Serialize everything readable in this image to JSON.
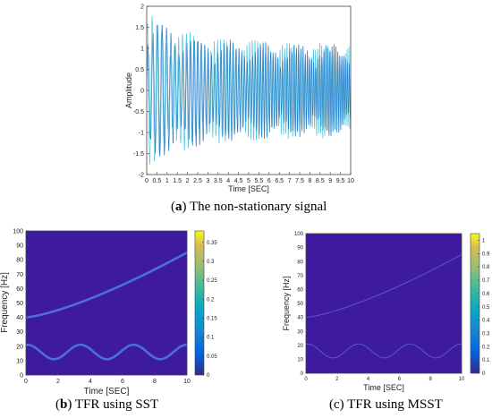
{
  "chart_data": [
    {
      "type": "line",
      "panel_label": "(a)",
      "caption": "The non-stationary signal",
      "xlabel": "Time [SEC]",
      "ylabel": "Amplitude",
      "xlim": [
        0,
        10
      ],
      "ylim": [
        -2,
        2
      ],
      "xticks": [
        "0",
        "0.5",
        "1",
        "1.5",
        "2",
        "2.5",
        "3",
        "3.5",
        "4",
        "4.5",
        "5",
        "5.5",
        "6",
        "6.5",
        "7",
        "7.5",
        "8",
        "8.5",
        "9",
        "9.5",
        "10"
      ],
      "yticks": [
        "2",
        "1.5",
        "1",
        "0.5",
        "0",
        "-0.5",
        "-1",
        "-1.5",
        "-2"
      ],
      "grid": false,
      "colors": {
        "line": "#2a7fc9",
        "line_alt": "#1fb7d4"
      }
    },
    {
      "type": "heatmap",
      "panel_label": "(b)",
      "caption": "TFR using SST",
      "xlabel": "Time [SEC]",
      "ylabel": "Frequency [Hz]",
      "xlim": [
        0,
        10
      ],
      "ylim": [
        0,
        100
      ],
      "xticks": [
        "0",
        "2",
        "4",
        "6",
        "8",
        "10"
      ],
      "yticks": [
        "100",
        "90",
        "80",
        "70",
        "60",
        "50",
        "40",
        "30",
        "20",
        "10",
        "0"
      ],
      "colorbar_ticks": [
        "0.35",
        "0.3",
        "0.25",
        "0.2",
        "0.15",
        "0.1",
        "0.05",
        "0"
      ],
      "colorbar_range": [
        0,
        0.38
      ],
      "components": [
        {
          "name_shown": false,
          "kind": "chirp",
          "f0": 40,
          "f1": 85
        },
        {
          "name_shown": false,
          "kind": "sinusoidal_fm",
          "center": 16,
          "amplitude": 5,
          "period": 3.3
        }
      ],
      "colors": {
        "background": "#3d1a9e",
        "ridge": "#4f7cf0"
      }
    },
    {
      "type": "heatmap",
      "panel_label": "(c)",
      "caption": "TFR using MSST",
      "xlabel": "Time [SEC]",
      "ylabel": "Frequency [Hz]",
      "xlim": [
        0,
        10
      ],
      "ylim": [
        0,
        100
      ],
      "xticks": [
        "0",
        "2",
        "4",
        "6",
        "8",
        "10"
      ],
      "yticks": [
        "100",
        "90",
        "80",
        "70",
        "60",
        "50",
        "40",
        "30",
        "20",
        "10",
        "0"
      ],
      "colorbar_ticks": [
        "1",
        "0.9",
        "0.8",
        "0.7",
        "0.6",
        "0.5",
        "0.4",
        "0.3",
        "0.2",
        "0.1",
        "0"
      ],
      "colorbar_range": [
        0,
        1.05
      ],
      "components": [
        {
          "name_shown": false,
          "kind": "chirp",
          "f0": 40,
          "f1": 85
        },
        {
          "name_shown": false,
          "kind": "sinusoidal_fm",
          "center": 16,
          "amplitude": 5,
          "period": 3.3
        }
      ],
      "colors": {
        "background": "#3d1a9e",
        "ridge": "#5a5ee0"
      }
    }
  ]
}
